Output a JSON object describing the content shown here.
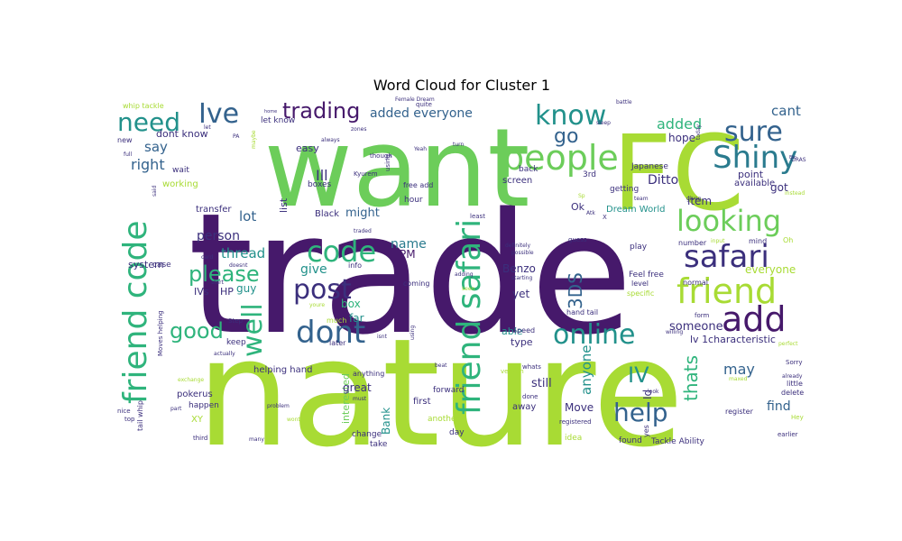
{
  "chart_data": {
    "type": "wordcloud",
    "title": "Word Cloud for Cluster 1",
    "palette": {
      "dark_purple": "#46196b",
      "indigo": "#3b2f7c",
      "blue": "#33628d",
      "teal_blue": "#2a7b8e",
      "teal": "#22918b",
      "green_teal": "#2fb47c",
      "green": "#6ccd5a",
      "lime": "#a8db34"
    },
    "words": [
      {
        "text": "trade",
        "color": "dark_purple"
      },
      {
        "text": "nature",
        "color": "lime"
      },
      {
        "text": "want",
        "color": "green"
      },
      {
        "text": "FC",
        "color": "lime"
      },
      {
        "text": "friend code",
        "color": "green_teal"
      },
      {
        "text": "people",
        "color": "green"
      },
      {
        "text": "friend safari",
        "color": "green_teal"
      },
      {
        "text": "Shiny",
        "color": "teal_blue"
      },
      {
        "text": "looking",
        "color": "green"
      },
      {
        "text": "safari",
        "color": "indigo"
      },
      {
        "text": "friend",
        "color": "lime"
      },
      {
        "text": "add",
        "color": "dark_purple"
      },
      {
        "text": "code",
        "color": "green_teal"
      },
      {
        "text": "post",
        "color": "indigo"
      },
      {
        "text": "dont",
        "color": "blue"
      },
      {
        "text": "online",
        "color": "teal"
      },
      {
        "text": "know",
        "color": "teal"
      },
      {
        "text": "sure",
        "color": "blue"
      },
      {
        "text": "Ive",
        "color": "blue"
      },
      {
        "text": "need",
        "color": "teal"
      },
      {
        "text": "trading",
        "color": "dark_purple"
      },
      {
        "text": "well",
        "color": "green_teal"
      },
      {
        "text": "help",
        "color": "blue"
      },
      {
        "text": "please",
        "color": "green_teal"
      },
      {
        "text": "good",
        "color": "green_teal"
      },
      {
        "text": "IV",
        "color": "teal"
      },
      {
        "text": "go",
        "color": "blue"
      },
      {
        "text": "thats",
        "color": "green_teal"
      },
      {
        "text": "3DS",
        "color": "blue"
      },
      {
        "text": "added everyone",
        "color": "blue"
      },
      {
        "text": "added",
        "color": "green_teal"
      },
      {
        "text": "may",
        "color": "blue"
      },
      {
        "text": "Ill",
        "color": "indigo"
      },
      {
        "text": "right",
        "color": "blue"
      },
      {
        "text": "say",
        "color": "blue"
      },
      {
        "text": "cant",
        "color": "blue"
      },
      {
        "text": "lot",
        "color": "blue"
      },
      {
        "text": "thread",
        "color": "teal"
      },
      {
        "text": "person",
        "color": "indigo"
      },
      {
        "text": "give",
        "color": "teal"
      },
      {
        "text": "name",
        "color": "teal_blue"
      },
      {
        "text": "PM",
        "color": "dark_purple"
      },
      {
        "text": "anyone",
        "color": "teal"
      },
      {
        "text": "Ditto",
        "color": "indigo"
      },
      {
        "text": "hope",
        "color": "indigo"
      },
      {
        "text": "got",
        "color": "indigo"
      },
      {
        "text": "find",
        "color": "blue"
      },
      {
        "text": "still",
        "color": "indigo"
      },
      {
        "text": "someone",
        "color": "indigo"
      },
      {
        "text": "everyone",
        "color": "lime"
      },
      {
        "text": "might",
        "color": "blue"
      },
      {
        "text": "dont know",
        "color": "indigo"
      },
      {
        "text": "guy",
        "color": "teal"
      },
      {
        "text": "box",
        "color": "green_teal"
      },
      {
        "text": "far",
        "color": "teal"
      },
      {
        "text": "interested",
        "color": "green"
      },
      {
        "text": "great",
        "color": "indigo"
      },
      {
        "text": "Bank",
        "color": "teal"
      },
      {
        "text": "Move",
        "color": "indigo"
      },
      {
        "text": "yet",
        "color": "indigo"
      },
      {
        "text": "Benzo",
        "color": "indigo"
      },
      {
        "text": "able",
        "color": "teal"
      },
      {
        "text": "type",
        "color": "indigo"
      },
      {
        "text": "Ok",
        "color": "indigo"
      },
      {
        "text": "item",
        "color": "indigo"
      },
      {
        "text": "list",
        "color": "indigo"
      },
      {
        "text": "Id",
        "color": "indigo"
      },
      {
        "text": "lv 1characteristic",
        "color": "indigo"
      },
      {
        "text": "Dream World",
        "color": "teal"
      },
      {
        "text": "IVs",
        "color": "indigo"
      },
      {
        "text": "HP",
        "color": "indigo"
      },
      {
        "text": "system",
        "color": "indigo"
      },
      {
        "text": "transfer",
        "color": "indigo"
      },
      {
        "text": "working",
        "color": "lime"
      },
      {
        "text": "wait",
        "color": "indigo"
      },
      {
        "text": "easy",
        "color": "indigo"
      },
      {
        "text": "point",
        "color": "indigo"
      },
      {
        "text": "available",
        "color": "indigo"
      },
      {
        "text": "screen",
        "color": "indigo"
      },
      {
        "text": "boxes",
        "color": "indigo"
      },
      {
        "text": "Black",
        "color": "indigo"
      },
      {
        "text": "hour",
        "color": "indigo"
      },
      {
        "text": "Japanese",
        "color": "indigo"
      },
      {
        "text": "3rd",
        "color": "indigo"
      },
      {
        "text": "back",
        "color": "indigo"
      },
      {
        "text": "getting",
        "color": "indigo"
      },
      {
        "text": "let know",
        "color": "indigo"
      },
      {
        "text": "whip tackle",
        "color": "lime"
      },
      {
        "text": "new",
        "color": "indigo"
      },
      {
        "text": "case",
        "color": "indigo"
      },
      {
        "text": "pokerus",
        "color": "indigo"
      },
      {
        "text": "happen",
        "color": "indigo"
      },
      {
        "text": "XY",
        "color": "lime"
      },
      {
        "text": "keep",
        "color": "indigo"
      },
      {
        "text": "helping hand",
        "color": "indigo"
      },
      {
        "text": "anything",
        "color": "indigo"
      },
      {
        "text": "change",
        "color": "indigo"
      },
      {
        "text": "take",
        "color": "indigo"
      },
      {
        "text": "away",
        "color": "indigo"
      },
      {
        "text": "first",
        "color": "indigo"
      },
      {
        "text": "forward",
        "color": "indigo"
      },
      {
        "text": "another",
        "color": "lime"
      },
      {
        "text": "day",
        "color": "indigo"
      },
      {
        "text": "idea",
        "color": "lime"
      },
      {
        "text": "found",
        "color": "indigo"
      },
      {
        "text": "Tackle Ability",
        "color": "indigo"
      },
      {
        "text": "register",
        "color": "indigo"
      },
      {
        "text": "delete",
        "color": "indigo"
      },
      {
        "text": "little",
        "color": "indigo"
      },
      {
        "text": "earlier",
        "color": "indigo"
      },
      {
        "text": "mind",
        "color": "indigo"
      },
      {
        "text": "play",
        "color": "indigo"
      },
      {
        "text": "level",
        "color": "indigo"
      },
      {
        "text": "normal",
        "color": "indigo"
      },
      {
        "text": "form",
        "color": "indigo"
      },
      {
        "text": "number",
        "color": "indigo"
      },
      {
        "text": "specific",
        "color": "lime"
      },
      {
        "text": "Feel free",
        "color": "indigo"
      },
      {
        "text": "hand tail",
        "color": "indigo"
      },
      {
        "text": "Speed",
        "color": "indigo"
      },
      {
        "text": "whats",
        "color": "indigo"
      },
      {
        "text": "info",
        "color": "indigo"
      },
      {
        "text": "coming",
        "color": "indigo"
      },
      {
        "text": "free add",
        "color": "indigo"
      },
      {
        "text": "quite",
        "color": "indigo"
      },
      {
        "text": "Female Dream",
        "color": "indigo"
      },
      {
        "text": "Moves helping",
        "color": "indigo"
      },
      {
        "text": "tail whip",
        "color": "indigo"
      },
      {
        "text": "exchange",
        "color": "lime"
      },
      {
        "text": "ORAS",
        "color": "indigo"
      },
      {
        "text": "Sorry",
        "color": "indigo"
      },
      {
        "text": "already",
        "color": "indigo"
      },
      {
        "text": "Hey",
        "color": "lime"
      },
      {
        "text": "maxed",
        "color": "lime"
      },
      {
        "text": "willing",
        "color": "indigo"
      },
      {
        "text": "perfect",
        "color": "lime"
      },
      {
        "text": "instead",
        "color": "lime"
      },
      {
        "text": "given",
        "color": "indigo"
      },
      {
        "text": "Oh",
        "color": "lime"
      },
      {
        "text": "input",
        "color": "lime"
      },
      {
        "text": "much",
        "color": "lime"
      },
      {
        "text": "later",
        "color": "indigo"
      },
      {
        "text": "Step",
        "color": "indigo"
      },
      {
        "text": "actually",
        "color": "indigo"
      },
      {
        "text": "card",
        "color": "indigo"
      },
      {
        "text": "doesnt",
        "color": "indigo"
      },
      {
        "text": "start",
        "color": "indigo"
      },
      {
        "text": "definitely",
        "color": "indigo"
      },
      {
        "text": "possible",
        "color": "indigo"
      },
      {
        "text": "starting",
        "color": "indigo"
      },
      {
        "text": "adding",
        "color": "indigo"
      },
      {
        "text": "seen",
        "color": "lime"
      },
      {
        "text": "guess",
        "color": "indigo"
      },
      {
        "text": "least",
        "color": "indigo"
      },
      {
        "text": "though",
        "color": "indigo"
      },
      {
        "text": "using",
        "color": "indigo"
      },
      {
        "text": "Kyurem",
        "color": "indigo"
      },
      {
        "text": "zones",
        "color": "indigo"
      },
      {
        "text": "always",
        "color": "indigo"
      },
      {
        "text": "turn",
        "color": "indigo"
      },
      {
        "text": "Yeah",
        "color": "indigo"
      },
      {
        "text": "battle",
        "color": "indigo"
      },
      {
        "text": "sleep",
        "color": "indigo"
      },
      {
        "text": "team",
        "color": "indigo"
      },
      {
        "text": "today",
        "color": "indigo"
      },
      {
        "text": "Atk",
        "color": "indigo"
      },
      {
        "text": "X",
        "color": "indigo"
      },
      {
        "text": "Sp",
        "color": "lime"
      },
      {
        "text": "Etc",
        "color": "indigo"
      },
      {
        "text": "PA",
        "color": "indigo"
      },
      {
        "text": "let",
        "color": "indigo"
      },
      {
        "text": "said",
        "color": "indigo"
      },
      {
        "text": "full",
        "color": "indigo"
      },
      {
        "text": "maybe",
        "color": "lime"
      },
      {
        "text": "home",
        "color": "indigo"
      },
      {
        "text": "traded",
        "color": "indigo"
      },
      {
        "text": "youre",
        "color": "lime"
      },
      {
        "text": "problem",
        "color": "indigo"
      },
      {
        "text": "wont",
        "color": "lime"
      },
      {
        "text": "many",
        "color": "indigo"
      },
      {
        "text": "third",
        "color": "indigo"
      },
      {
        "text": "part",
        "color": "indigo"
      },
      {
        "text": "top",
        "color": "indigo"
      },
      {
        "text": "nice",
        "color": "indigo"
      },
      {
        "text": "must",
        "color": "indigo"
      },
      {
        "text": "version",
        "color": "lime"
      },
      {
        "text": "done",
        "color": "indigo"
      },
      {
        "text": "registered",
        "color": "indigo"
      },
      {
        "text": "yes",
        "color": "indigo"
      },
      {
        "text": "look",
        "color": "indigo"
      },
      {
        "text": "beat",
        "color": "indigo"
      },
      {
        "text": "isnt",
        "color": "indigo"
      },
      {
        "text": "using",
        "color": "indigo"
      }
    ]
  }
}
